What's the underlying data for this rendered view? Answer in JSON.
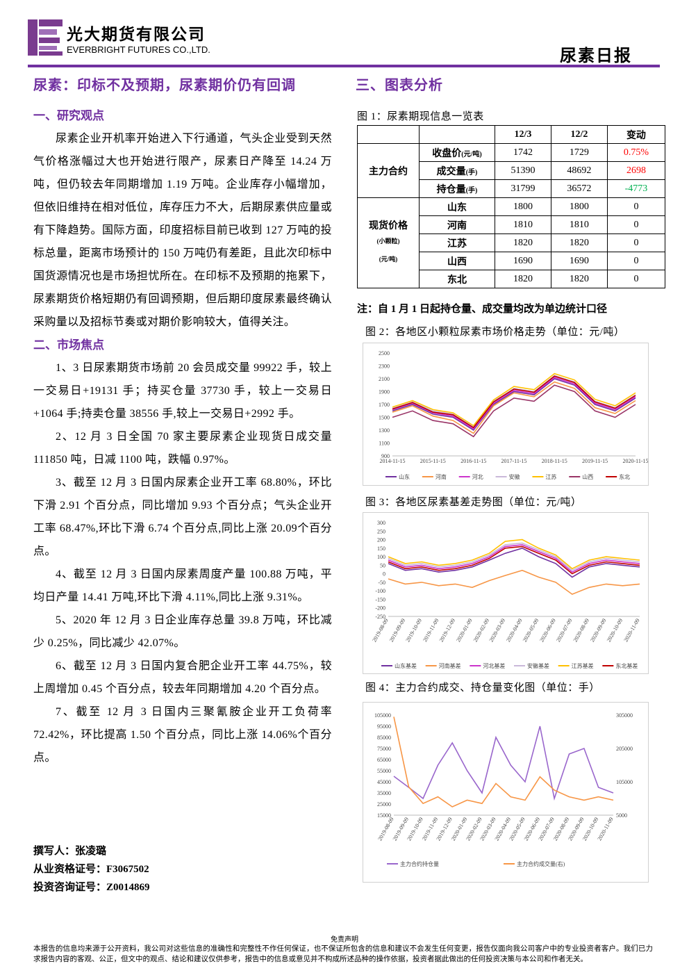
{
  "header": {
    "company_cn": "光大期货有限公司",
    "company_en": "EVERBRIGHT FUTURES CO.,LTD.",
    "report": "尿素日报"
  },
  "left": {
    "title": "尿素：印标不及预期，尿素期价仍有回调",
    "sections": [
      {
        "heading": "一、研究观点",
        "paragraphs": [
          "尿素企业开机率开始进入下行通道，气头企业受到天然气价格涨幅过大也开始进行限产，尿素日产降至 14.24 万吨，但仍较去年同期增加 1.19 万吨。企业库存小幅增加，但依旧维持在相对低位，库存压力不大，后期尿素供应量或有下降趋势。国际方面，印度招标目前已收到 127 万吨的投标总量，距离市场预计的 150 万吨仍有差距，且此次印标中国货源情况也是市场担忧所在。在印标不及预期的拖累下，尿素期货价格短期仍有回调预期，但后期印度尿素最终确认采购量以及招标节奏或对期价影响较大，值得关注。"
        ]
      },
      {
        "heading": "二、市场焦点",
        "paragraphs": [
          "1、3 日尿素期货市场前 20 会员成交量 99922 手，较上一交易日+19131 手；持买仓量 37730 手，较上一交易日+1064 手;持卖仓量 38556 手,较上一交易日+2992 手。",
          "2、12 月 3 日全国 70 家主要尿素企业现货日成交量111850 吨，日减 1100 吨，跌幅 0.97%。",
          "3、截至 12 月 3 日国内尿素企业开工率 68.80%，环比下滑 2.91 个百分点，同比增加 9.93 个百分点；气头企业开工率 68.47%,环比下滑 6.74 个百分点,同比上涨 20.09个百分点。",
          "4、截至 12 月 3 日国内尿素周度产量 100.88 万吨，平均日产量 14.41 万吨,环比下滑 4.11%,同比上涨 9.31%。",
          "5、2020 年 12 月 3 日企业库存总量 39.8 万吨，环比减少 0.25%，同比减少 42.07%。",
          "6、截至 12 月 3 日国内复合肥企业开工率 44.75%，较上周增加 0.45 个百分点，较去年同期增加 4.20 个百分点。",
          "7、截至 12 月 3 日国内三聚氰胺企业开工负荷率72.42%，环比提高 1.50 个百分点，同比上涨 14.06%个百分点。"
        ]
      }
    ]
  },
  "author": {
    "lines": [
      "撰写人：张凌璐",
      "从业资格证号：F3067502",
      "投资咨询证号：Z0014869"
    ]
  },
  "right": {
    "heading": "三、图表分析"
  },
  "table": {
    "caption": "图 1：尿素期现信息一览表",
    "columns": [
      "12/3",
      "12/2",
      "变动"
    ],
    "groups": [
      {
        "label": "主力合约",
        "rows": [
          {
            "name": "收盘价",
            "unit": "(元/吨)",
            "values": [
              1742,
              1729,
              "0.75%"
            ],
            "color": "#ff0000"
          },
          {
            "name": "成交量",
            "unit": "(手)",
            "values": [
              51390,
              48692,
              2698
            ],
            "color": "#ff0000"
          },
          {
            "name": "持仓量",
            "unit": "(手)",
            "values": [
              31799,
              36572,
              -4773
            ],
            "color": "#00b050"
          }
        ]
      },
      {
        "label": "现货价格",
        "sublabels": [
          "(小颗粒)",
          "(元/吨)"
        ],
        "rows": [
          {
            "name": "山东",
            "values": [
              1800,
              1800,
              0
            ],
            "color": "#000000"
          },
          {
            "name": "河南",
            "values": [
              1810,
              1810,
              0
            ],
            "color": "#000000"
          },
          {
            "name": "江苏",
            "values": [
              1820,
              1820,
              0
            ],
            "color": "#000000"
          },
          {
            "name": "山西",
            "values": [
              1690,
              1690,
              0
            ],
            "color": "#000000"
          },
          {
            "name": "东北",
            "values": [
              1820,
              1820,
              0
            ],
            "color": "#000000"
          }
        ]
      }
    ],
    "note": "注：自 1 月 1 日起持仓量、成交量均改为单边统计口径"
  },
  "figures": [
    {
      "caption": "图 2：各地区小颗粒尿素市场价格走势（单位：元/吨）",
      "chart": {
        "type": "line",
        "grid": false,
        "x": [
          "2014-11-15",
          "2015-05-15",
          "2015-11-15",
          "2016-05-15",
          "2016-11-15",
          "2017-05-15",
          "2017-11-15",
          "2018-05-15",
          "2018-11-15",
          "2019-05-15",
          "2019-11-15",
          "2020-05-15",
          "2020-11-15"
        ],
        "xlim": [
          "2014-11-15",
          "2020-11-15"
        ],
        "xticks": [
          "2014-11-15",
          "2015-11-15",
          "2016-11-15",
          "2017-11-15",
          "2018-11-15",
          "2019-11-15",
          "2020-11-15"
        ],
        "ylim": [
          900,
          2500
        ],
        "yticks": [
          900,
          1100,
          1300,
          1500,
          1700,
          1900,
          2100,
          2300,
          2500
        ],
        "series": [
          {
            "name": "山东",
            "color": "#7030a0",
            "values": [
              1600,
              1700,
              1550,
              1500,
              1300,
              1700,
              1900,
              1850,
              2100,
              2000,
              1700,
              1600,
              1800
            ]
          },
          {
            "name": "河南",
            "color": "#f79646",
            "values": [
              1580,
              1680,
              1520,
              1450,
              1250,
              1680,
              1880,
              1820,
              2050,
              1950,
              1650,
              1560,
              1760
            ]
          },
          {
            "name": "河北",
            "color": "#cc33cc",
            "values": [
              1620,
              1720,
              1570,
              1520,
              1320,
              1720,
              1920,
              1870,
              2120,
              2020,
              1720,
              1620,
              1820
            ]
          },
          {
            "name": "安徽",
            "color": "#c9b8d9",
            "values": [
              1640,
              1740,
              1600,
              1550,
              1350,
              1750,
              1950,
              1900,
              2150,
              2050,
              1750,
              1650,
              1850
            ]
          },
          {
            "name": "江苏",
            "color": "#ffc000",
            "values": [
              1660,
              1760,
              1620,
              1570,
              1370,
              1770,
              1980,
              1930,
              2180,
              2080,
              1780,
              1680,
              1880
            ]
          },
          {
            "name": "山西",
            "color": "#993366",
            "values": [
              1500,
              1600,
              1450,
              1400,
              1200,
              1600,
              1800,
              1750,
              2000,
              1900,
              1600,
              1500,
              1700
            ]
          },
          {
            "name": "东北",
            "color": "#c00000",
            "values": [
              1630,
              1730,
              1580,
              1540,
              1340,
              1740,
              1940,
              1890,
              2140,
              2040,
              1740,
              1640,
              1840
            ]
          }
        ]
      }
    },
    {
      "caption": "图 3：各地区尿素基差走势图（单位：元/吨）",
      "chart": {
        "type": "line",
        "grid": false,
        "x": [
          "2019-08-09",
          "2019-09-09",
          "2019-10-09",
          "2019-11-09",
          "2019-12-09",
          "2020-01-09",
          "2020-02-09",
          "2020-03-09",
          "2020-04-09",
          "2020-05-09",
          "2020-06-09",
          "2020-07-09",
          "2020-08-09",
          "2020-09-09",
          "2020-10-09",
          "2020-11-09"
        ],
        "xlim": [
          "2019-08-09",
          "2020-11-09"
        ],
        "xticks": [
          "2019-08-09",
          "2019-09-09",
          "2019-10-09",
          "2019-11-09",
          "2019-12-09",
          "2020-01-09",
          "2020-02-09",
          "2020-03-09",
          "2020-04-09",
          "2020-05-09",
          "2020-06-09",
          "2020-07-09",
          "2020-08-09",
          "2020-09-09",
          "2020-10-09",
          "2020-11-09"
        ],
        "ylim": [
          -250,
          300
        ],
        "yticks": [
          -250,
          -200,
          -150,
          -100,
          -50,
          0,
          50,
          100,
          150,
          200,
          250,
          300
        ],
        "series": [
          {
            "name": "山东基差",
            "color": "#7030a0",
            "values": [
              60,
              20,
              30,
              10,
              20,
              40,
              80,
              120,
              150,
              100,
              60,
              -20,
              40,
              60,
              50,
              40
            ]
          },
          {
            "name": "河南基差",
            "color": "#f79646",
            "values": [
              -30,
              -60,
              -50,
              -70,
              -60,
              -80,
              -40,
              -10,
              20,
              -20,
              -50,
              -120,
              -80,
              -60,
              -70,
              -60
            ]
          },
          {
            "name": "河北基差",
            "color": "#cc33cc",
            "values": [
              80,
              40,
              50,
              30,
              40,
              60,
              100,
              160,
              170,
              130,
              90,
              10,
              60,
              80,
              70,
              60
            ]
          },
          {
            "name": "安徽基差",
            "color": "#c9b8d9",
            "values": [
              90,
              50,
              60,
              40,
              50,
              70,
              110,
              170,
              180,
              140,
              100,
              20,
              70,
              90,
              80,
              70
            ]
          },
          {
            "name": "江苏基差",
            "color": "#ffc000",
            "values": [
              100,
              60,
              70,
              50,
              60,
              80,
              120,
              190,
              200,
              150,
              110,
              30,
              80,
              100,
              90,
              80
            ]
          },
          {
            "name": "东北基差",
            "color": "#c00000",
            "values": [
              70,
              30,
              40,
              20,
              30,
              50,
              90,
              150,
              160,
              120,
              80,
              0,
              50,
              70,
              60,
              50
            ]
          }
        ]
      }
    },
    {
      "caption": "图 4：主力合约成交、持仓量变化图（单位：手）",
      "chart": {
        "type": "line",
        "grid": false,
        "x": [
          "2019-08-09",
          "2019-09-09",
          "2019-10-09",
          "2019-11-09",
          "2019-12-09",
          "2020-01-09",
          "2020-02-09",
          "2020-03-09",
          "2020-04-09",
          "2020-05-09",
          "2020-06-09",
          "2020-07-09",
          "2020-08-09",
          "2020-09-09",
          "2020-10-09",
          "2020-11-09"
        ],
        "xlim": [
          "2019-08-09",
          "2020-11-09"
        ],
        "xticks": [
          "2019-08-09",
          "2019-09-09",
          "2019-10-09",
          "2019-11-09",
          "2019-12-09",
          "2020-01-09",
          "2020-02-09",
          "2020-03-09",
          "2020-04-09",
          "2020-05-09",
          "2020-06-09",
          "2020-07-09",
          "2020-08-09",
          "2020-09-09",
          "2020-10-09",
          "2020-11-09"
        ],
        "ylim": [
          15000,
          105000
        ],
        "yticks": [
          15000,
          25000,
          35000,
          45000,
          55000,
          65000,
          75000,
          85000,
          95000,
          105000
        ],
        "y2lim": [
          5000,
          305000
        ],
        "y2ticks": [
          5000,
          105000,
          205000,
          305000
        ],
        "series": [
          {
            "name": "主力合约持仓量",
            "color": "#9966cc",
            "values": [
              50000,
              40000,
              30000,
              60000,
              80000,
              55000,
              35000,
              85000,
              60000,
              45000,
              95000,
              30000,
              70000,
              75000,
              40000,
              35000
            ]
          },
          {
            "name": "主力合约成交量(右)",
            "color": "#f79646",
            "axis": "y2",
            "values": [
              300000,
              90000,
              40000,
              60000,
              30000,
              50000,
              40000,
              100000,
              60000,
              50000,
              120000,
              80000,
              60000,
              50000,
              60000,
              50000
            ]
          }
        ]
      }
    }
  ],
  "footer": {
    "title": "免责声明",
    "text": "本报告的信息均来源于公开资料，我公司对这些信息的准确性和完整性不作任何保证，也不保证所包含的信息和建议不会发生任何变更，报告仅面向我公司客户中的专业投资者客户。我们已力求报告内容的客观、公正，但文中的观点、结论和建议仅供参考，报告中的信息或意见并不构成所述品种的操作依据，投资者据此做出的任何投资决策与本公司和作者无关。"
  }
}
